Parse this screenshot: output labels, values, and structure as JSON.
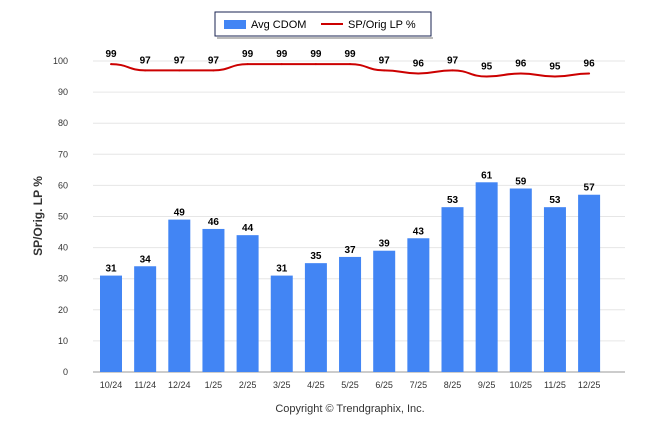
{
  "chart_data": {
    "type": "bar",
    "categories": [
      "10/24",
      "11/24",
      "12/24",
      "1/25",
      "2/25",
      "3/25",
      "4/25",
      "5/25",
      "6/25",
      "7/25",
      "8/25",
      "9/25",
      "10/25",
      "11/25",
      "12/25"
    ],
    "series": [
      {
        "name": "Avg CDOM",
        "type": "bar",
        "color": "#4285f4",
        "values": [
          31,
          34,
          49,
          46,
          44,
          31,
          35,
          37,
          39,
          43,
          53,
          61,
          59,
          53,
          57
        ]
      },
      {
        "name": "SP/Orig LP %",
        "type": "line",
        "color": "#cc0000",
        "values": [
          99,
          97,
          97,
          97,
          99,
          99,
          99,
          99,
          97,
          96,
          97,
          95,
          96,
          95,
          96
        ]
      }
    ],
    "ylabel": "SP/Orig. LP %",
    "ylim": [
      0,
      100
    ],
    "yticks": [
      0,
      10,
      20,
      30,
      40,
      50,
      60,
      70,
      80,
      90,
      100
    ],
    "grid": true,
    "legend": "top-center"
  },
  "copyright": "Copyright © Trendgraphix, Inc."
}
